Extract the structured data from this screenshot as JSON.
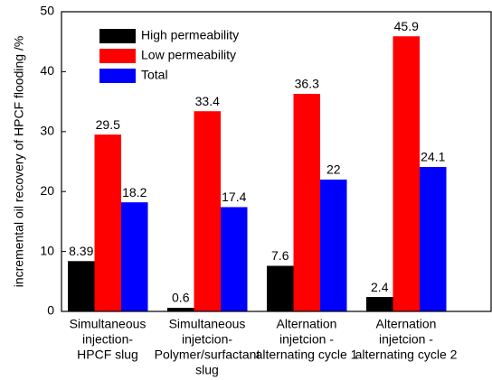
{
  "chart_data": {
    "type": "bar",
    "y_label": "incremental oil recovery of HPCF flooding /%",
    "categories": [
      [
        "Simultaneous",
        "injection-",
        "HPCF slug"
      ],
      [
        "Simultaneous",
        "injetcion-",
        "Polymer/surfactant",
        "slug"
      ],
      [
        "Alternation",
        "injetcion -",
        "alternating cycle 1"
      ],
      [
        "Alternation",
        "injetcion -",
        "alternating cycle 2"
      ]
    ],
    "series": [
      {
        "name": "High permeability",
        "color": "#000000",
        "values": [
          8.39,
          0.6,
          7.6,
          2.4
        ]
      },
      {
        "name": "Low permeability",
        "color": "#ff0000",
        "values": [
          29.5,
          33.4,
          36.3,
          45.9
        ]
      },
      {
        "name": "Total",
        "color": "#0000ff",
        "values": [
          18.2,
          17.4,
          22,
          24.1
        ]
      }
    ],
    "ylim": [
      0,
      50
    ],
    "yticks": [
      0,
      10,
      20,
      30,
      40,
      50
    ],
    "legend": "upper left"
  }
}
